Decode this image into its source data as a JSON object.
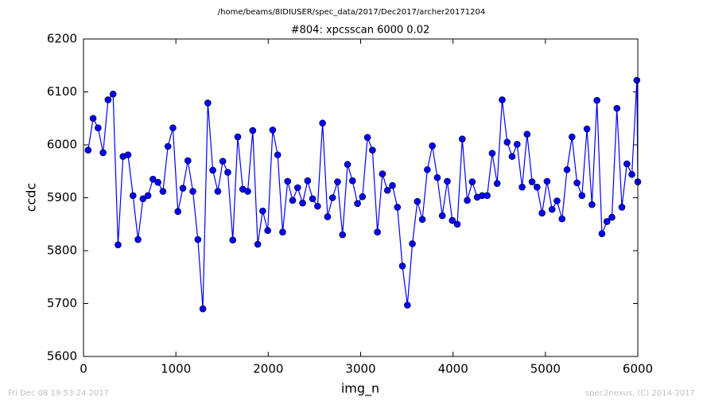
{
  "chart_data": {
    "type": "line",
    "title": "/home/beams/8IDIUSER/spec_data/2017/Dec2017/archer20171204",
    "subtitle": "#804: xpcsscan 6000 0.02",
    "x_label": "img_n",
    "y_label": "ccdc",
    "footer_left": "Fri Dec 08 19:53:24 2017",
    "footer_right": "spec2nexus, (C) 2014-2017",
    "x": [
      50,
      104,
      158,
      212,
      266,
      320,
      374,
      428,
      482,
      536,
      590,
      644,
      698,
      752,
      806,
      860,
      914,
      968,
      1022,
      1076,
      1130,
      1184,
      1238,
      1292,
      1346,
      1400,
      1454,
      1508,
      1562,
      1616,
      1670,
      1724,
      1778,
      1832,
      1886,
      1940,
      1994,
      2048,
      2102,
      2156,
      2210,
      2264,
      2318,
      2372,
      2426,
      2480,
      2534,
      2588,
      2642,
      2696,
      2750,
      2804,
      2858,
      2912,
      2966,
      3020,
      3074,
      3128,
      3182,
      3236,
      3290,
      3344,
      3398,
      3452,
      3506,
      3560,
      3614,
      3668,
      3722,
      3776,
      3830,
      3884,
      3938,
      3992,
      4046,
      4100,
      4154,
      4208,
      4262,
      4316,
      4370,
      4424,
      4478,
      4532,
      4586,
      4640,
      4694,
      4748,
      4802,
      4856,
      4910,
      4964,
      5018,
      5072,
      5126,
      5180,
      5234,
      5288,
      5342,
      5396,
      5450,
      5504,
      5558,
      5612,
      5666,
      5720,
      5774,
      5828,
      5882,
      5936,
      5990,
      6000
    ],
    "series": [
      {
        "name": "ccdc",
        "color": "#0000ff",
        "values": [
          5990,
          6050,
          6032,
          5985,
          6085,
          6096,
          5811,
          5978,
          5981,
          5904,
          5821,
          5898,
          5904,
          5935,
          5929,
          5912,
          5997,
          6032,
          5874,
          5918,
          5970,
          5912,
          5821,
          5690,
          6079,
          5952,
          5912,
          5969,
          5948,
          5820,
          6015,
          5916,
          5912,
          6027,
          5812,
          5875,
          5838,
          6028,
          5981,
          5835,
          5931,
          5895,
          5919,
          5890,
          5932,
          5898,
          5884,
          6041,
          5864,
          5900,
          5930,
          5830,
          5963,
          5932,
          5889,
          5902,
          6014,
          5990,
          5835,
          5945,
          5914,
          5923,
          5882,
          5771,
          5697,
          5813,
          5893,
          5859,
          5953,
          5998,
          5938,
          5866,
          5931,
          5857,
          5850,
          6011,
          5895,
          5930,
          5901,
          5904,
          5904,
          5984,
          5927,
          6085,
          6005,
          5978,
          6001,
          5920,
          6020,
          5930,
          5920,
          5871,
          5931,
          5878,
          5894,
          5860,
          5953,
          6015,
          5928,
          5904,
          6030,
          5887,
          6084,
          5832,
          5855,
          5863,
          6069,
          5882,
          5964,
          5944,
          6122,
          5930
        ]
      }
    ],
    "xlim": [
      0,
      6000
    ],
    "xticks": [
      0,
      1000,
      2000,
      3000,
      4000,
      5000,
      6000
    ],
    "ylim": [
      5600,
      6200
    ],
    "yticks": [
      5600,
      5700,
      5800,
      5900,
      6000,
      6100,
      6200
    ],
    "grid": false
  }
}
